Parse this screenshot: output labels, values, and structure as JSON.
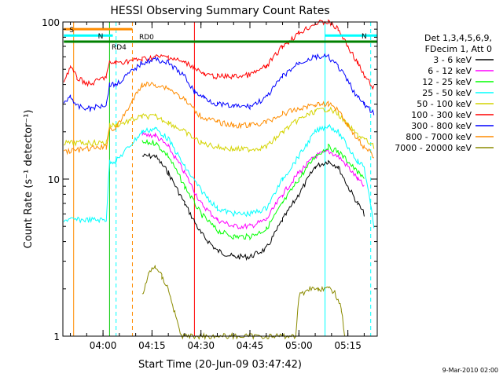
{
  "chart_data": {
    "type": "line",
    "title": "HESSI Observing Summary Count Rates",
    "xlabel": "Start Time (20-Jun-09 03:47:42)",
    "ylabel": "Count Rate (s⁻¹ detector⁻¹)",
    "y_scale": "log",
    "ylim": [
      1,
      100
    ],
    "xlim": [
      "03:47:42",
      "05:24:00"
    ],
    "x_ticks": [
      "04:00",
      "04:15",
      "04:30",
      "04:45",
      "05:00",
      "05:15"
    ],
    "y_ticks": [
      "1",
      "10",
      "100"
    ],
    "grid": false,
    "legend": {
      "position": "right",
      "header": [
        "Det 1,3,4,5,6,9,",
        "FDecim 1, Att 0"
      ],
      "entries": [
        {
          "name": "3 - 6 keV",
          "color": "#000000"
        },
        {
          "name": "6 - 12 keV",
          "color": "#ff00ff"
        },
        {
          "name": "12 - 25 keV",
          "color": "#00ff00"
        },
        {
          "name": "25 - 50 keV",
          "color": "#00ffff"
        },
        {
          "name": "50 - 100 keV",
          "color": "#d4d400"
        },
        {
          "name": "100 - 300 keV",
          "color": "#ff0000"
        },
        {
          "name": "300 - 800 keV",
          "color": "#0000ff"
        },
        {
          "name": "800 - 7000 keV",
          "color": "#ff8c00"
        },
        {
          "name": "7000 - 20000 keV",
          "color": "#8b8b00"
        }
      ]
    },
    "annotations": [
      {
        "text": "S",
        "color": "#ff8c00",
        "from": "03:48",
        "to": "04:09",
        "y": 90
      },
      {
        "text": "N",
        "color": "#00ffff",
        "from": "03:48",
        "to": "04:03",
        "y": 82
      },
      {
        "text": "RD0",
        "color": "#008000",
        "from": "04:25",
        "to": "05:24",
        "y": 75
      },
      {
        "text": "RD4",
        "color": "#008000",
        "from": "03:48",
        "to": "04:26",
        "y": 75
      },
      {
        "text": "N",
        "color": "#00ffff",
        "from": "05:08",
        "to": "05:24",
        "y": 82
      }
    ],
    "vertical_markers": [
      {
        "time": "03:51",
        "color": "#ff8c00",
        "style": "solid"
      },
      {
        "time": "04:02",
        "color": "#00c800",
        "style": "solid"
      },
      {
        "time": "04:04",
        "color": "#00ffff",
        "style": "dashed"
      },
      {
        "time": "04:09",
        "color": "#ff8c00",
        "style": "dashed"
      },
      {
        "time": "04:28",
        "color": "#ff0000",
        "style": "solid"
      },
      {
        "time": "05:08",
        "color": "#00ffff",
        "style": "solid"
      },
      {
        "time": "05:22",
        "color": "#00ffff",
        "style": "dashed"
      }
    ],
    "series": [
      {
        "name": "3 - 6 keV",
        "color": "#000000",
        "points": [
          [
            "04:12",
            14
          ],
          [
            "04:16",
            14
          ],
          [
            "04:20",
            11
          ],
          [
            "04:25",
            7
          ],
          [
            "04:30",
            4.5
          ],
          [
            "04:35",
            3.5
          ],
          [
            "04:40",
            3.2
          ],
          [
            "04:45",
            3.2
          ],
          [
            "04:50",
            3.6
          ],
          [
            "04:55",
            5.5
          ],
          [
            "05:00",
            8
          ],
          [
            "05:05",
            12
          ],
          [
            "05:09",
            13
          ],
          [
            "05:12",
            12
          ],
          [
            "05:15",
            9
          ],
          [
            "05:18",
            7
          ],
          [
            "05:20",
            6
          ]
        ]
      },
      {
        "name": "6 - 12 keV",
        "color": "#ff00ff",
        "points": [
          [
            "04:12",
            19
          ],
          [
            "04:16",
            19
          ],
          [
            "04:20",
            16
          ],
          [
            "04:25",
            11
          ],
          [
            "04:30",
            7
          ],
          [
            "04:35",
            5.5
          ],
          [
            "04:40",
            5
          ],
          [
            "04:45",
            5
          ],
          [
            "04:50",
            5.5
          ],
          [
            "04:55",
            8
          ],
          [
            "05:00",
            11
          ],
          [
            "05:05",
            14
          ],
          [
            "05:09",
            15
          ],
          [
            "05:12",
            14
          ],
          [
            "05:15",
            12
          ],
          [
            "05:18",
            10
          ],
          [
            "05:20",
            9
          ]
        ]
      },
      {
        "name": "12 - 25 keV",
        "color": "#00ff00",
        "points": [
          [
            "04:12",
            17
          ],
          [
            "04:16",
            17
          ],
          [
            "04:20",
            14
          ],
          [
            "04:25",
            9
          ],
          [
            "04:30",
            6
          ],
          [
            "04:35",
            4.7
          ],
          [
            "04:40",
            4.3
          ],
          [
            "04:45",
            4.3
          ],
          [
            "04:50",
            4.8
          ],
          [
            "04:55",
            7
          ],
          [
            "05:00",
            10
          ],
          [
            "05:05",
            14
          ],
          [
            "05:09",
            16
          ],
          [
            "05:12",
            15
          ],
          [
            "05:15",
            13
          ],
          [
            "05:18",
            11
          ],
          [
            "05:20",
            10
          ]
        ]
      },
      {
        "name": "25 - 50 keV",
        "color": "#00ffff",
        "points": [
          [
            "03:48",
            5.5
          ],
          [
            "04:01",
            5.5
          ],
          [
            "04:02",
            13
          ],
          [
            "04:04",
            13
          ],
          [
            "04:12",
            20
          ],
          [
            "04:16",
            21
          ],
          [
            "04:20",
            18
          ],
          [
            "04:25",
            12
          ],
          [
            "04:30",
            8.5
          ],
          [
            "04:35",
            6.5
          ],
          [
            "04:40",
            6
          ],
          [
            "04:45",
            6
          ],
          [
            "04:50",
            6.5
          ],
          [
            "04:55",
            10
          ],
          [
            "05:00",
            14
          ],
          [
            "05:05",
            20
          ],
          [
            "05:09",
            22
          ],
          [
            "05:12",
            20
          ],
          [
            "05:15",
            16
          ],
          [
            "05:18",
            13
          ],
          [
            "05:20",
            12
          ],
          [
            "05:23",
            5
          ]
        ]
      },
      {
        "name": "50 - 100 keV",
        "color": "#d4d400",
        "points": [
          [
            "03:48",
            17
          ],
          [
            "04:01",
            17
          ],
          [
            "04:02",
            22
          ],
          [
            "04:04",
            22
          ],
          [
            "04:12",
            25
          ],
          [
            "04:16",
            25
          ],
          [
            "04:20",
            23
          ],
          [
            "04:25",
            20
          ],
          [
            "04:30",
            17
          ],
          [
            "04:35",
            16
          ],
          [
            "04:40",
            15.5
          ],
          [
            "04:45",
            15.5
          ],
          [
            "04:50",
            16
          ],
          [
            "04:55",
            20
          ],
          [
            "05:00",
            24
          ],
          [
            "05:05",
            27
          ],
          [
            "05:09",
            28
          ],
          [
            "05:12",
            26
          ],
          [
            "05:15",
            22
          ],
          [
            "05:18",
            19
          ],
          [
            "05:20",
            18
          ],
          [
            "05:23",
            16
          ]
        ]
      },
      {
        "name": "100 - 300 keV",
        "color": "#ff0000",
        "points": [
          [
            "03:48",
            42
          ],
          [
            "03:50",
            52
          ],
          [
            "03:52",
            44
          ],
          [
            "03:56",
            40
          ],
          [
            "04:01",
            45
          ],
          [
            "04:02",
            55
          ],
          [
            "04:04",
            55
          ],
          [
            "04:12",
            58
          ],
          [
            "04:16",
            60
          ],
          [
            "04:20",
            60
          ],
          [
            "04:25",
            55
          ],
          [
            "04:28",
            52
          ],
          [
            "04:31",
            46
          ],
          [
            "04:35",
            45
          ],
          [
            "04:40",
            45
          ],
          [
            "04:45",
            46
          ],
          [
            "04:50",
            52
          ],
          [
            "04:55",
            70
          ],
          [
            "05:00",
            85
          ],
          [
            "05:05",
            98
          ],
          [
            "05:09",
            100
          ],
          [
            "05:12",
            90
          ],
          [
            "05:15",
            70
          ],
          [
            "05:18",
            55
          ],
          [
            "05:20",
            45
          ],
          [
            "05:23",
            38
          ]
        ]
      },
      {
        "name": "300 - 800 keV",
        "color": "#0000ff",
        "points": [
          [
            "03:48",
            30
          ],
          [
            "03:50",
            34
          ],
          [
            "03:52",
            29
          ],
          [
            "03:56",
            28
          ],
          [
            "04:01",
            30
          ],
          [
            "04:02",
            40
          ],
          [
            "04:04",
            40
          ],
          [
            "04:12",
            55
          ],
          [
            "04:16",
            58
          ],
          [
            "04:20",
            55
          ],
          [
            "04:25",
            45
          ],
          [
            "04:28",
            36
          ],
          [
            "04:31",
            33
          ],
          [
            "04:35",
            30
          ],
          [
            "04:40",
            29
          ],
          [
            "04:45",
            29
          ],
          [
            "04:50",
            33
          ],
          [
            "04:55",
            45
          ],
          [
            "05:00",
            55
          ],
          [
            "05:05",
            60
          ],
          [
            "05:09",
            60
          ],
          [
            "05:12",
            52
          ],
          [
            "05:15",
            42
          ],
          [
            "05:18",
            33
          ],
          [
            "05:20",
            30
          ],
          [
            "05:23",
            26
          ]
        ]
      },
      {
        "name": "800 - 7000 keV",
        "color": "#ff8c00",
        "points": [
          [
            "03:48",
            15
          ],
          [
            "04:01",
            16
          ],
          [
            "04:02",
            21
          ],
          [
            "04:04",
            21
          ],
          [
            "04:12",
            40
          ],
          [
            "04:16",
            40
          ],
          [
            "04:20",
            38
          ],
          [
            "04:25",
            32
          ],
          [
            "04:30",
            25
          ],
          [
            "04:35",
            23
          ],
          [
            "04:40",
            22
          ],
          [
            "04:45",
            22
          ],
          [
            "04:50",
            23
          ],
          [
            "04:55",
            26
          ],
          [
            "05:00",
            28
          ],
          [
            "05:05",
            30
          ],
          [
            "05:09",
            30
          ],
          [
            "05:12",
            28
          ],
          [
            "05:15",
            22
          ],
          [
            "05:18",
            18
          ],
          [
            "05:20",
            16
          ],
          [
            "05:23",
            14
          ]
        ]
      },
      {
        "name": "7000 - 20000 keV",
        "color": "#8b8b00",
        "points": [
          [
            "04:12",
            1.8
          ],
          [
            "04:14",
            2.5
          ],
          [
            "04:16",
            2.8
          ],
          [
            "04:18",
            2.4
          ],
          [
            "04:20",
            2.0
          ],
          [
            "04:22",
            1.4
          ],
          [
            "04:24",
            1.0
          ],
          [
            "04:59",
            1.0
          ],
          [
            "05:00",
            1.8
          ],
          [
            "05:03",
            2.0
          ],
          [
            "05:06",
            2.0
          ],
          [
            "05:09",
            2.0
          ],
          [
            "05:11",
            1.9
          ],
          [
            "05:13",
            1.5
          ],
          [
            "05:14",
            1.0
          ]
        ]
      }
    ],
    "footnote": "9-Mar-2010 02:00"
  }
}
